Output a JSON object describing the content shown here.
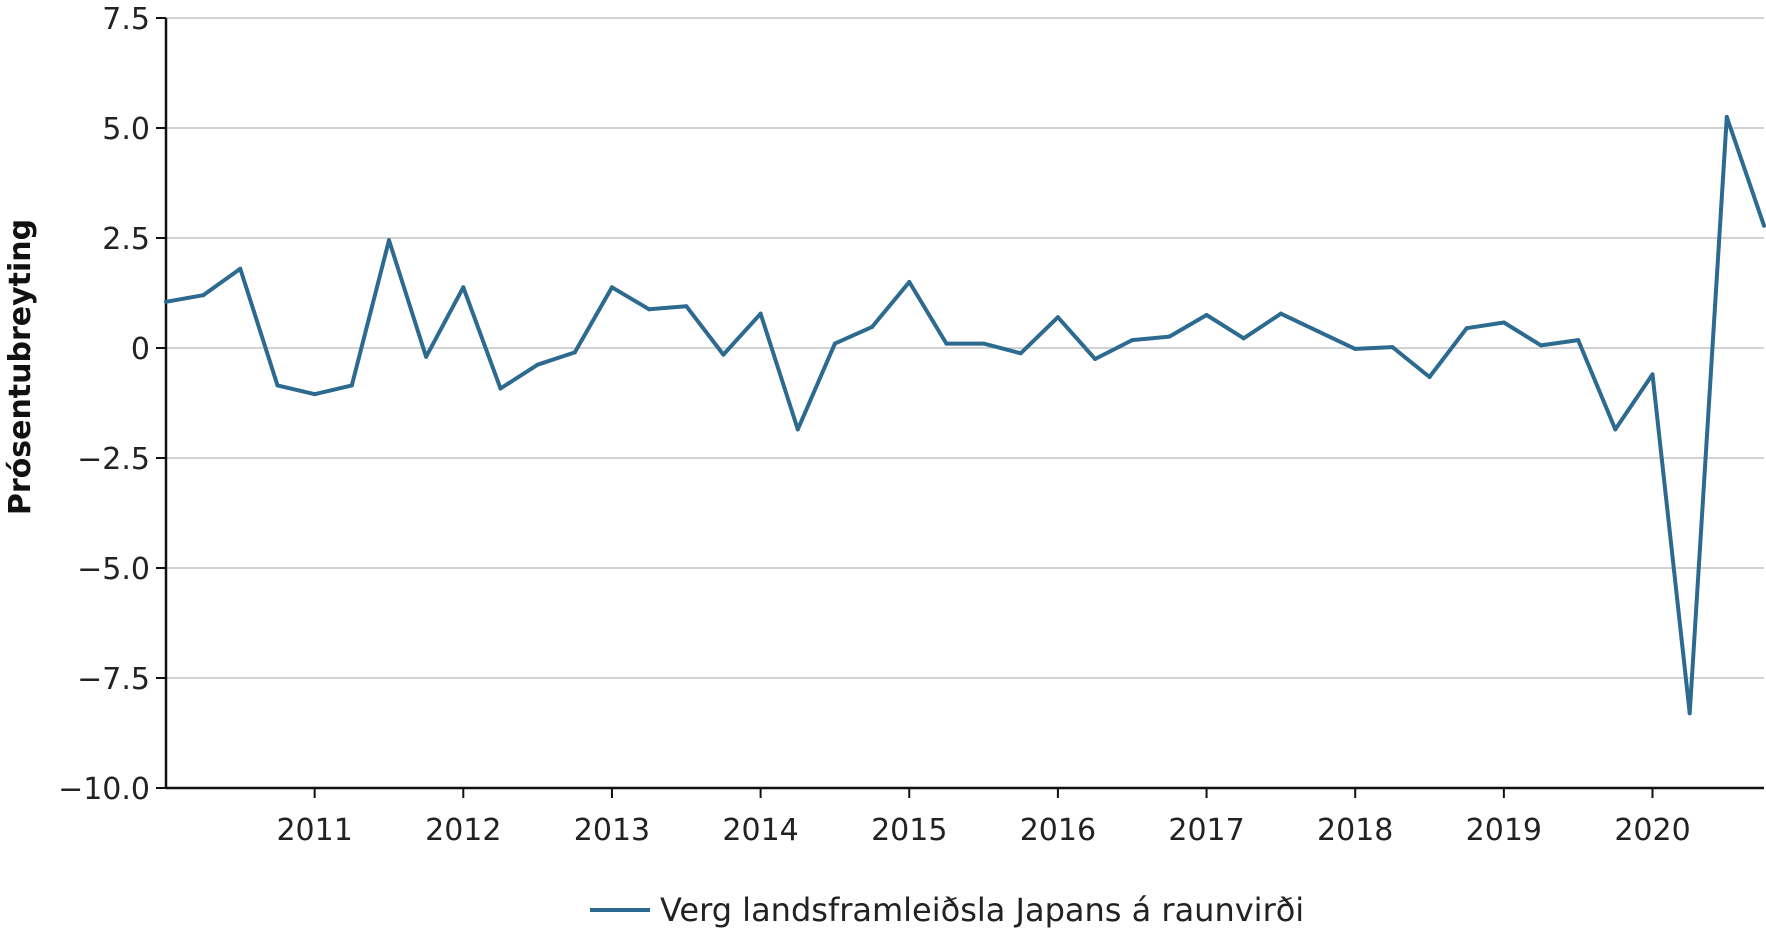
{
  "chart_data": {
    "type": "line",
    "ylabel": "Prósentubreyting",
    "xlabel": "",
    "ylim": [
      -10.0,
      7.5
    ],
    "yticks": [
      7.5,
      5.0,
      2.5,
      0,
      -2.5,
      -5.0,
      -7.5,
      -10.0
    ],
    "ytick_labels": [
      "7.5",
      "5.0",
      "2.5",
      "0",
      "−2.5",
      "−5.0",
      "−7.5",
      "−10.0"
    ],
    "xlim": [
      2010.0,
      2020.75
    ],
    "xticks": [
      2011,
      2012,
      2013,
      2014,
      2015,
      2016,
      2017,
      2018,
      2019,
      2020
    ],
    "xtick_labels": [
      "2011",
      "2012",
      "2013",
      "2014",
      "2015",
      "2016",
      "2017",
      "2018",
      "2019",
      "2020"
    ],
    "grid": "horizontal",
    "legend_position": "bottom-center",
    "series": [
      {
        "name": "Verg landsframleiðsla Japans á raunvirði",
        "color": "#2d6a8f",
        "x": [
          2010.0,
          2010.25,
          2010.5,
          2010.75,
          2011.0,
          2011.25,
          2011.5,
          2011.75,
          2012.0,
          2012.25,
          2012.5,
          2012.75,
          2013.0,
          2013.25,
          2013.5,
          2013.75,
          2014.0,
          2014.25,
          2014.5,
          2014.75,
          2015.0,
          2015.25,
          2015.5,
          2015.75,
          2016.0,
          2016.25,
          2016.5,
          2016.75,
          2017.0,
          2017.25,
          2017.5,
          2017.75,
          2018.0,
          2018.25,
          2018.5,
          2018.75,
          2019.0,
          2019.25,
          2019.5,
          2019.75,
          2020.0,
          2020.25,
          2020.5,
          2020.75
        ],
        "values": [
          1.05,
          1.2,
          1.8,
          -0.85,
          -1.05,
          -0.85,
          2.45,
          -0.2,
          1.38,
          -0.92,
          -0.38,
          -0.1,
          1.38,
          0.88,
          0.95,
          -0.15,
          0.78,
          -1.85,
          0.1,
          0.48,
          1.5,
          0.1,
          0.1,
          -0.12,
          0.7,
          -0.25,
          0.18,
          0.26,
          0.75,
          0.22,
          0.78,
          0.38,
          -0.02,
          0.02,
          -0.66,
          0.45,
          0.58,
          0.06,
          0.18,
          -1.85,
          -0.6,
          -8.3,
          5.25,
          2.78
        ]
      }
    ]
  }
}
